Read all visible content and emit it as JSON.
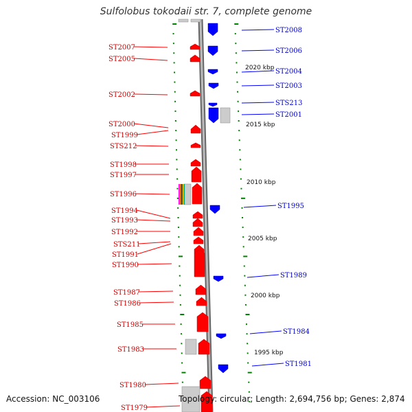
{
  "title": "Sulfolobus tokodaii str. 7, complete genome",
  "footer": {
    "accession": "Accession: NC_003106",
    "summary": "Topology: circular; Length: 2,694,756 bp; Genes: 2,874"
  },
  "colors": {
    "forward": "#ff0000",
    "reverse": "#0000ff",
    "backbone": "#999999",
    "tick": "#008000",
    "other": "#cccccc"
  },
  "kbp_labels": [
    "2020 kbp",
    "2015 kbp",
    "2010 kbp",
    "2005 kbp",
    "2000 kbp",
    "1995 kbp"
  ],
  "genes_left": [
    "ST2007",
    "ST2005",
    "ST2002",
    "ST2000",
    "ST1999",
    "STS212",
    "ST1998",
    "ST1997",
    "ST1996",
    "ST1994",
    "ST1993",
    "ST1992",
    "STS211",
    "ST1991",
    "ST1990",
    "ST1987",
    "ST1986",
    "ST1985",
    "ST1983",
    "ST1980",
    "ST1979"
  ],
  "genes_right": [
    "ST2008",
    "ST2006",
    "ST2004",
    "ST2003",
    "STS213",
    "ST2001",
    "ST1995",
    "ST1989",
    "ST1984",
    "ST1981"
  ]
}
